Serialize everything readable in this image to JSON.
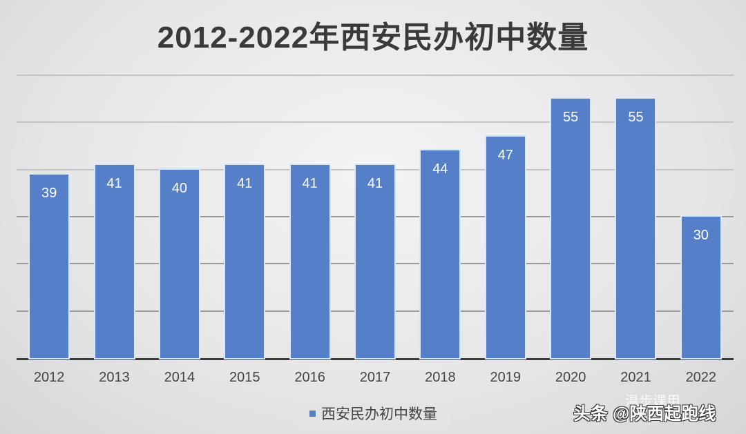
{
  "title": "2012-2022年西安民办初中数量",
  "chart_data": {
    "type": "bar",
    "title": "2012-2022年西安民办初中数量",
    "categories": [
      "2012",
      "2013",
      "2014",
      "2015",
      "2016",
      "2017",
      "2018",
      "2019",
      "2020",
      "2021",
      "2022"
    ],
    "series": [
      {
        "name": "西安民办初中数量",
        "values": [
          39,
          41,
          40,
          41,
          41,
          41,
          44,
          47,
          55,
          55,
          30
        ]
      }
    ],
    "xlabel": "",
    "ylabel": "",
    "ylim": [
      0,
      60
    ],
    "grid": true,
    "gridline_step": 10,
    "y_tick_labels_shown": false,
    "legend_position": "bottom",
    "bar_color": "#5580c9"
  },
  "legend": {
    "label": "西安民办初中数量"
  },
  "watermark": {
    "text": "头条 @陕西起跑线",
    "secondary": "温步课用"
  }
}
